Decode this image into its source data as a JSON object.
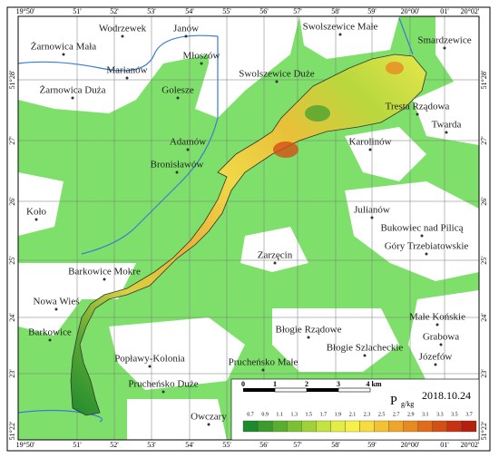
{
  "map": {
    "lon_labels": [
      "19°50'",
      "51'",
      "52'",
      "53'",
      "54'",
      "55'",
      "56'",
      "57'",
      "58'",
      "59'",
      "20°00'",
      "01'",
      "20°02'"
    ],
    "lat_labels": [
      "51°28'",
      "27'",
      "26'",
      "25'",
      "24'",
      "23'",
      "51°22'"
    ],
    "places": [
      "Żarnowica Mała",
      "Wodrzewek",
      "Janów",
      "Swolszewice Małe",
      "Smardzewice",
      "Marianów",
      "Młoszów",
      "Swolszewice Duże",
      "Żarnowica Duża",
      "Golesze",
      "Tresta Rządowa",
      "Twarda",
      "Adamów",
      "Karolinów",
      "Bronisławów",
      "Koło",
      "Julianów",
      "Bukowiec nad Pilicą",
      "Góry Trzebiatowskie",
      "Zarzęcin",
      "Barkowice Mokre",
      "Nowa Wieś",
      "Barkowice",
      "Błogie Rządowe",
      "Małe Końskie",
      "Grabowa",
      "Błogie Szlacheckie",
      "Popławy-Kolonia",
      "Prucheńsko Małe",
      "Józefów",
      "Prucheńsko Duże",
      "Owczary"
    ],
    "scale_labels": [
      0,
      1,
      2,
      3,
      "4 km"
    ],
    "legend": {
      "parameter": "P",
      "unit": "g/kg",
      "date": "2018.10.24",
      "values": [
        0.7,
        0.9,
        1.1,
        1.3,
        1.5,
        1.7,
        1.9,
        2.1,
        2.3,
        2.5,
        2.7,
        2.9,
        3.1,
        3.3,
        3.5,
        3.7
      ],
      "colors": [
        "#1e8a2e",
        "#3a9c2d",
        "#5aae2f",
        "#7cc034",
        "#9fd23a",
        "#c3e33f",
        "#e2ee45",
        "#f7f04a",
        "#f7dc3f",
        "#f3c233",
        "#eea52a",
        "#e88a22",
        "#e06c1a",
        "#d44f15",
        "#c63312",
        "#b41f10"
      ]
    }
  }
}
